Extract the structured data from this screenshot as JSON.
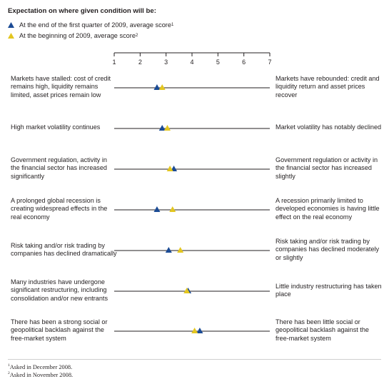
{
  "title": "Expectation on where given condition will be:",
  "legend": [
    {
      "marker": "first-quarter",
      "text": "At the end of the first quarter of 2009, average score",
      "note": "1",
      "color": "#1b4b95"
    },
    {
      "marker": "beginning",
      "text": "At the beginning of 2009, average score",
      "note": "2",
      "color": "#e3c620"
    }
  ],
  "footnotes": [
    {
      "mark": "1",
      "text": "Asked in December 2008."
    },
    {
      "mark": "2",
      "text": "Asked in November 2008."
    }
  ],
  "chart_data": {
    "type": "scatter",
    "xlim": [
      1,
      7
    ],
    "ticks": [
      "1",
      "2",
      "3",
      "4",
      "5",
      "6",
      "7"
    ],
    "grid": false,
    "legend_position": "top-left",
    "series": [
      {
        "name": "At the end of the first quarter of 2009, average score",
        "color": "#1b4b95",
        "marker": "triangle",
        "values": [
          2.65,
          2.85,
          3.3,
          2.65,
          3.1,
          3.85,
          4.3
        ]
      },
      {
        "name": "At the beginning of 2009, average score",
        "color": "#e3c620",
        "marker": "triangle",
        "values": [
          2.85,
          3.05,
          3.15,
          3.25,
          3.55,
          3.8,
          4.1
        ]
      }
    ],
    "rows": [
      {
        "left": "Markets have stalled: cost of credit remains high, liquidity remains limited, asset prices remain low",
        "right": "Markets have rebounded: credit and liquidity return and asset prices recover"
      },
      {
        "left": "High market volatility continues",
        "right": "Market volatility has notably declined"
      },
      {
        "left": "Government regulation, activity in the financial sector has increased significantly",
        "right": "Government regulation or activity in the financial sector has increased slightly"
      },
      {
        "left": "A prolonged global recession is creating widespread effects in the real economy",
        "right": "A recession primarily limited to developed economies is having little effect on the real economy"
      },
      {
        "left": "Risk taking and/or risk trading by companies has declined dramatically",
        "right": "Risk taking and/or risk trading by companies has declined moderately or slightly"
      },
      {
        "left": "Many industries have undergone significant restructuring, including consolidation and/or new entrants",
        "right": "Little industry restructuring has taken place"
      },
      {
        "left": "There has been a strong social or geopolitical backlash against the free-market system",
        "right": "There has been little social or geopolitical backlash against the free-market system"
      }
    ]
  }
}
